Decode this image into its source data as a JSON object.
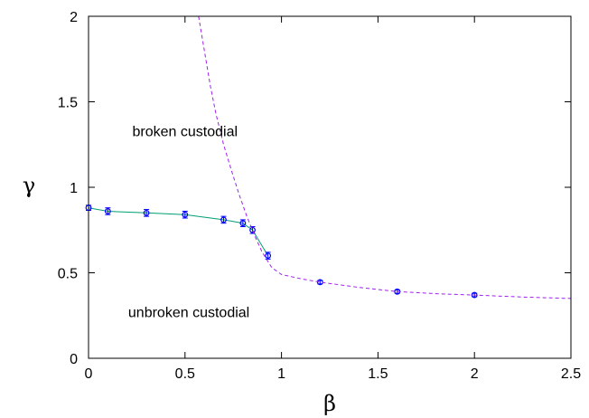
{
  "chart_data": {
    "type": "line",
    "xlabel": "β",
    "ylabel": "γ",
    "xlim": [
      0,
      2.5
    ],
    "ylim": [
      0,
      2
    ],
    "x_ticks": [
      "0",
      "0.5",
      "1",
      "1.5",
      "2",
      "2.5"
    ],
    "y_ticks": [
      "0",
      "0.5",
      "1",
      "1.5",
      "2"
    ],
    "grid": false,
    "legend": "none",
    "annotations": [
      {
        "text": "broken custodial",
        "x": 0.5,
        "y": 1.3
      },
      {
        "text": "unbroken custodial",
        "x": 0.52,
        "y": 0.24
      }
    ],
    "series": [
      {
        "style": "solid-with-errorbars",
        "color": "#009e73",
        "marker_color": "#0000ff",
        "points": [
          {
            "x": 0.0,
            "y": 0.88,
            "err": 0.015
          },
          {
            "x": 0.1,
            "y": 0.86,
            "err": 0.02
          },
          {
            "x": 0.3,
            "y": 0.85,
            "err": 0.02
          },
          {
            "x": 0.5,
            "y": 0.84,
            "err": 0.02
          },
          {
            "x": 0.7,
            "y": 0.81,
            "err": 0.02
          },
          {
            "x": 0.8,
            "y": 0.79,
            "err": 0.02
          },
          {
            "x": 0.85,
            "y": 0.75,
            "err": 0.02
          },
          {
            "x": 0.93,
            "y": 0.6,
            "err": 0.02
          }
        ]
      },
      {
        "style": "markers-with-errorbars",
        "color": "#0000ff",
        "points": [
          {
            "x": 1.2,
            "y": 0.445,
            "err": 0.01
          },
          {
            "x": 1.6,
            "y": 0.39,
            "err": 0.01
          },
          {
            "x": 2.0,
            "y": 0.37,
            "err": 0.01
          }
        ]
      },
      {
        "style": "dashed",
        "color": "#a020f0",
        "points": [
          {
            "x": 0.57,
            "y": 2.0
          },
          {
            "x": 0.6,
            "y": 1.8
          },
          {
            "x": 0.63,
            "y": 1.6
          },
          {
            "x": 0.66,
            "y": 1.43
          },
          {
            "x": 0.7,
            "y": 1.25
          },
          {
            "x": 0.74,
            "y": 1.1
          },
          {
            "x": 0.78,
            "y": 0.96
          },
          {
            "x": 0.82,
            "y": 0.83
          },
          {
            "x": 0.86,
            "y": 0.72
          },
          {
            "x": 0.9,
            "y": 0.62
          },
          {
            "x": 0.95,
            "y": 0.53
          },
          {
            "x": 1.0,
            "y": 0.49
          },
          {
            "x": 1.1,
            "y": 0.465
          },
          {
            "x": 1.2,
            "y": 0.445
          },
          {
            "x": 1.4,
            "y": 0.415
          },
          {
            "x": 1.6,
            "y": 0.39
          },
          {
            "x": 1.8,
            "y": 0.378
          },
          {
            "x": 2.0,
            "y": 0.37
          },
          {
            "x": 2.25,
            "y": 0.358
          },
          {
            "x": 2.5,
            "y": 0.35
          }
        ]
      }
    ]
  }
}
